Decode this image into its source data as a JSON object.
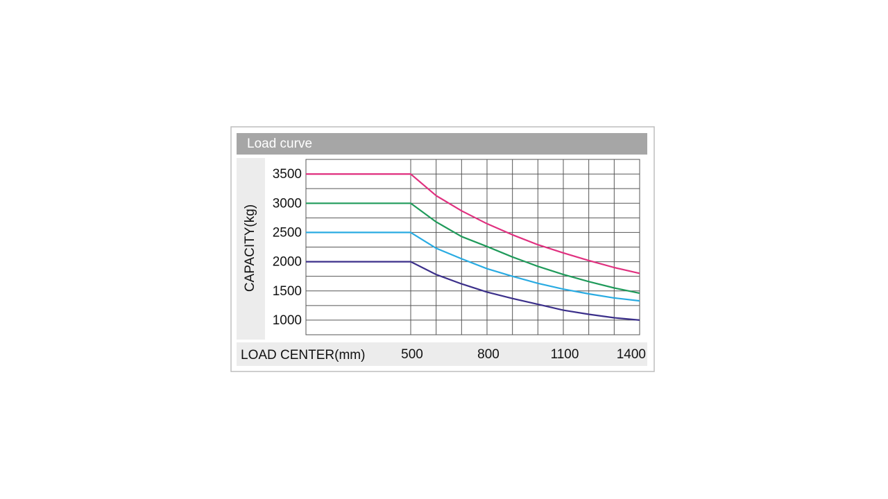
{
  "chart_data": {
    "type": "line",
    "title": "Load curve",
    "x_label": "LOAD CENTER(mm)",
    "y_label": "CAPACITY(kg)",
    "x": [
      90,
      500,
      600,
      700,
      800,
      900,
      1000,
      1100,
      1200,
      1300,
      1400
    ],
    "series": [
      {
        "color": "#e0307f",
        "values": [
          3500,
          3500,
          3130,
          2870,
          2650,
          2460,
          2290,
          2150,
          2020,
          1900,
          1800
        ]
      },
      {
        "color": "#1f9a5a",
        "values": [
          3000,
          3000,
          2680,
          2430,
          2260,
          2080,
          1920,
          1780,
          1660,
          1550,
          1460
        ]
      },
      {
        "color": "#29abe2",
        "values": [
          2500,
          2500,
          2230,
          2050,
          1880,
          1750,
          1630,
          1530,
          1450,
          1380,
          1330
        ]
      },
      {
        "color": "#3b2f8a",
        "values": [
          2000,
          2000,
          1780,
          1620,
          1480,
          1370,
          1270,
          1170,
          1100,
          1040,
          1000
        ]
      }
    ],
    "xlim": [
      90,
      1400
    ],
    "ylim": [
      750,
      3750
    ],
    "xticks": [
      500,
      800,
      1100,
      1400
    ],
    "yticks": [
      1000,
      1500,
      2000,
      2500,
      3000,
      3500
    ],
    "x_minor_grid": [
      600,
      700,
      900,
      1000,
      1200,
      1300
    ],
    "y_minor_grid": [
      1250,
      1750,
      2250,
      2750,
      3250
    ],
    "grid": true
  }
}
